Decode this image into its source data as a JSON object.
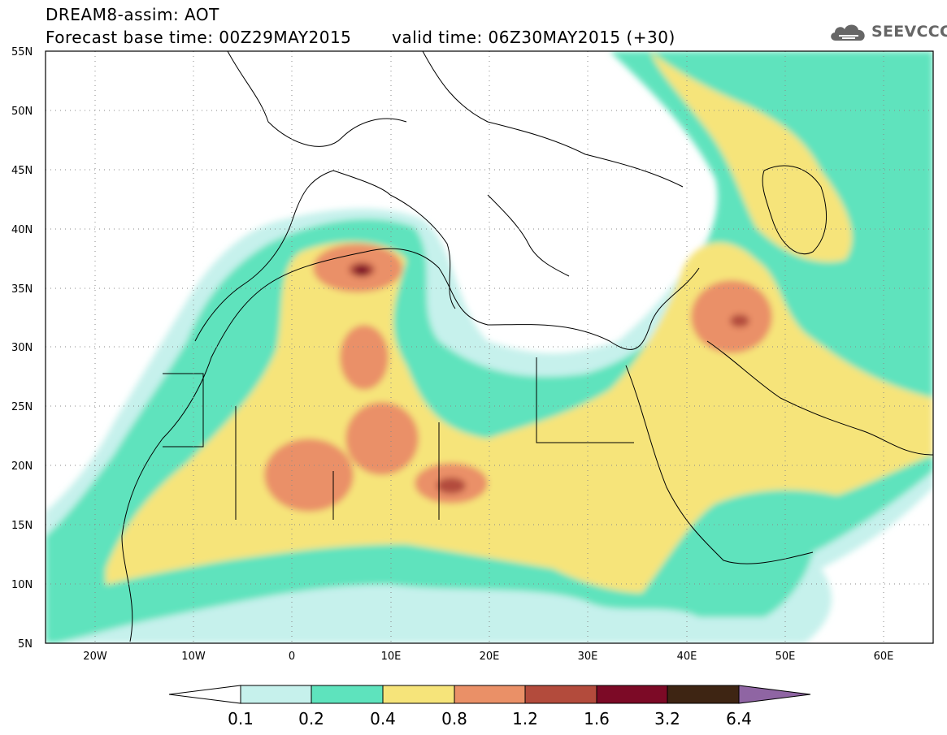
{
  "header": {
    "title": "DREAM8-assim: AOT",
    "base_time": "Forecast base time: 00Z29MAY2015",
    "valid_time": "valid time: 06Z30MAY2015 (+30)"
  },
  "logo": {
    "text": "SEEVCCC",
    "icon": "cloud-icon"
  },
  "map": {
    "background": "#ffffff",
    "lat_labels": [
      "55N",
      "50N",
      "45N",
      "40N",
      "35N",
      "30N",
      "25N",
      "20N",
      "15N",
      "10N",
      "5N"
    ],
    "lon_labels": [
      "20W",
      "10W",
      "0",
      "10E",
      "20E",
      "30E",
      "40E",
      "50E",
      "60E"
    ],
    "lat_range": [
      5,
      55
    ],
    "lon_range": [
      -25,
      65
    ],
    "grid": "dotted"
  },
  "colorbar": {
    "labels": [
      "0.1",
      "0.2",
      "0.4",
      "0.8",
      "1.2",
      "1.6",
      "3.2",
      "6.4"
    ],
    "colors": [
      "#ffffff",
      "#c6f1ec",
      "#5ee3bd",
      "#f6e47a",
      "#ea9067",
      "#b34b3c",
      "#7c0a26",
      "#3e2513",
      "#8f65a3"
    ]
  }
}
